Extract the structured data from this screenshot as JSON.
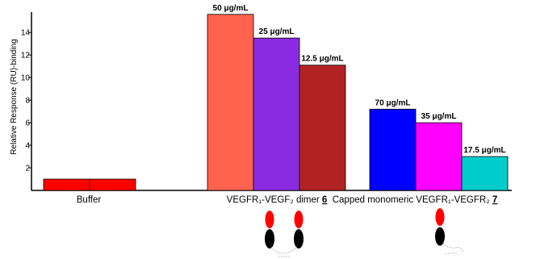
{
  "chart_data": {
    "type": "bar",
    "ylabel": "Relative Response (RU)-binding",
    "ylim": [
      0,
      15.8
    ],
    "yticks": [
      2,
      4,
      6,
      8,
      10,
      12,
      14
    ],
    "grid": false,
    "groups": [
      {
        "label_main": "Buffer",
        "label_suffix": "",
        "bars": [
          {
            "value": 1.0,
            "label": "",
            "color": "#ff0000"
          },
          {
            "value": 1.0,
            "label": "",
            "color": "#ff0000"
          }
        ]
      },
      {
        "label_main": "VEGFR₁-VEGF₂ dimer ",
        "label_suffix": "6",
        "bars": [
          {
            "value": 15.6,
            "label": "50 μg/mL",
            "color": "#ff634d"
          },
          {
            "value": 13.5,
            "label": "25 μg/mL",
            "color": "#8a2be2"
          },
          {
            "value": 11.1,
            "label": "12.5 μg/mL",
            "color": "#b22222"
          }
        ]
      },
      {
        "label_main": "Capped monomeric VEGFR₁-VEGFR₂ ",
        "label_suffix": "7",
        "bars": [
          {
            "value": 7.2,
            "label": "70 μg/mL",
            "color": "#0000ff"
          },
          {
            "value": 6.0,
            "label": "35 μg/mL",
            "color": "#ff00ff"
          },
          {
            "value": 3.0,
            "label": "17.5 μg/mL",
            "color": "#00cccc"
          }
        ]
      }
    ]
  },
  "icons": {
    "dimer_icon": "dimer-molecule-icon",
    "monomer_icon": "capped-monomer-molecule-icon"
  }
}
